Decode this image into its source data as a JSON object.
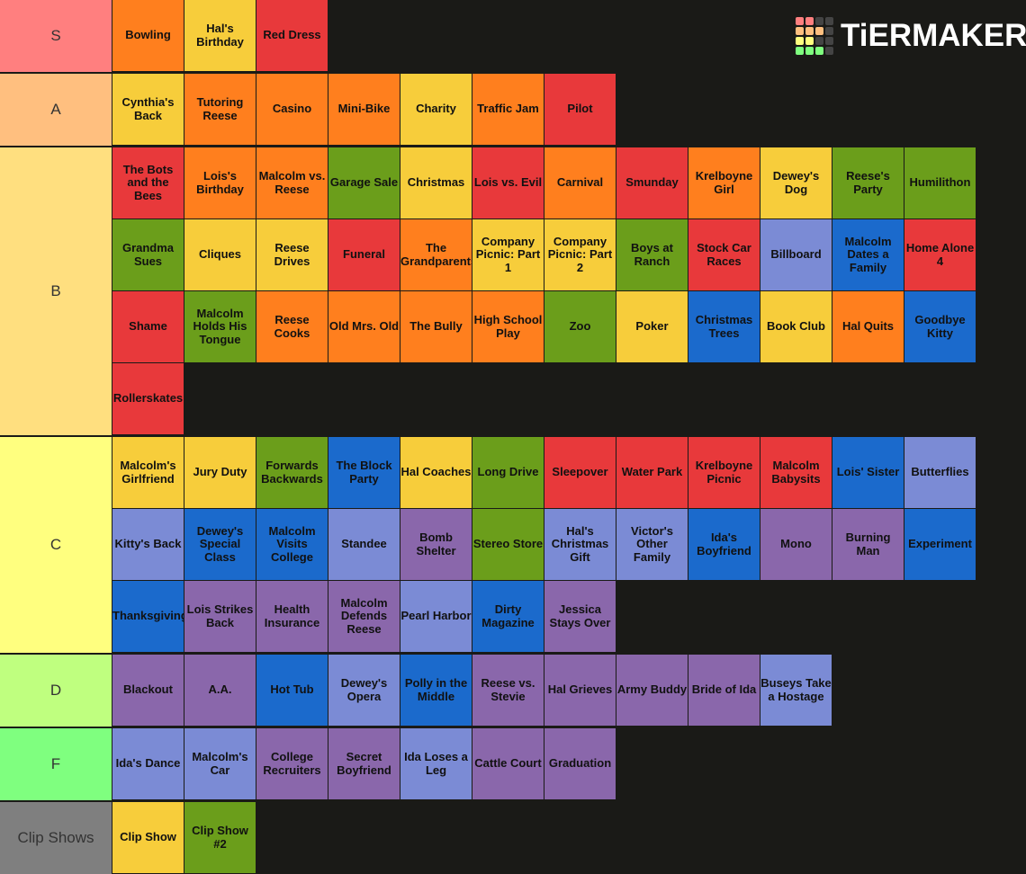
{
  "logo": "TiERMAKER",
  "tiers": [
    {
      "label": "S",
      "color": "#ff7f7f",
      "items": [
        {
          "label": "Bowling",
          "color": "#ff7f1e"
        },
        {
          "label": "Hal's Birthday",
          "color": "#f7cd3b"
        },
        {
          "label": "Red Dress",
          "color": "#e8393b"
        }
      ]
    },
    {
      "label": "A",
      "color": "#ffbf7f",
      "items": [
        {
          "label": "Cynthia's Back",
          "color": "#f7cd3b"
        },
        {
          "label": "Tutoring Reese",
          "color": "#ff7f1e"
        },
        {
          "label": "Casino",
          "color": "#ff7f1e"
        },
        {
          "label": "Mini-Bike",
          "color": "#ff7f1e"
        },
        {
          "label": "Charity",
          "color": "#f7cd3b"
        },
        {
          "label": "Traffic Jam",
          "color": "#ff7f1e"
        },
        {
          "label": "Pilot",
          "color": "#e8393b"
        }
      ]
    },
    {
      "label": "B",
      "color": "#ffdf7f",
      "items": [
        {
          "label": "The Bots and the Bees",
          "color": "#e8393b"
        },
        {
          "label": "Lois's Birthday",
          "color": "#ff7f1e"
        },
        {
          "label": "Malcolm vs. Reese",
          "color": "#ff7f1e"
        },
        {
          "label": "Garage Sale",
          "color": "#6b9e1b"
        },
        {
          "label": "Christmas",
          "color": "#f7cd3b"
        },
        {
          "label": "Lois vs. Evil",
          "color": "#e8393b"
        },
        {
          "label": "Carnival",
          "color": "#ff7f1e"
        },
        {
          "label": "Smunday",
          "color": "#e8393b"
        },
        {
          "label": "Krelboyne Girl",
          "color": "#ff7f1e"
        },
        {
          "label": "Dewey's Dog",
          "color": "#f7cd3b"
        },
        {
          "label": "Reese's Party",
          "color": "#6b9e1b"
        },
        {
          "label": "Humilithon",
          "color": "#6b9e1b"
        },
        {
          "label": "Grandma Sues",
          "color": "#6b9e1b"
        },
        {
          "label": "Cliques",
          "color": "#f7cd3b"
        },
        {
          "label": "Reese Drives",
          "color": "#f7cd3b"
        },
        {
          "label": "Funeral",
          "color": "#e8393b"
        },
        {
          "label": "The Grandparents",
          "color": "#ff7f1e"
        },
        {
          "label": "Company Picnic: Part 1",
          "color": "#f7cd3b"
        },
        {
          "label": "Company Picnic: Part 2",
          "color": "#f7cd3b"
        },
        {
          "label": "Boys at Ranch",
          "color": "#6b9e1b"
        },
        {
          "label": "Stock Car Races",
          "color": "#e8393b"
        },
        {
          "label": "Billboard",
          "color": "#7b8bd5"
        },
        {
          "label": "Malcolm Dates a Family",
          "color": "#1b6acc"
        },
        {
          "label": "Home Alone 4",
          "color": "#e8393b"
        },
        {
          "label": "Shame",
          "color": "#e8393b"
        },
        {
          "label": "Malcolm Holds His Tongue",
          "color": "#6b9e1b"
        },
        {
          "label": "Reese Cooks",
          "color": "#ff7f1e"
        },
        {
          "label": "Old Mrs. Old",
          "color": "#ff7f1e"
        },
        {
          "label": "The Bully",
          "color": "#ff7f1e"
        },
        {
          "label": "High School Play",
          "color": "#ff7f1e"
        },
        {
          "label": "Zoo",
          "color": "#6b9e1b"
        },
        {
          "label": "Poker",
          "color": "#f7cd3b"
        },
        {
          "label": "Christmas Trees",
          "color": "#1b6acc"
        },
        {
          "label": "Book Club",
          "color": "#f7cd3b"
        },
        {
          "label": "Hal Quits",
          "color": "#ff7f1e"
        },
        {
          "label": "Goodbye Kitty",
          "color": "#1b6acc"
        },
        {
          "label": "Rollerskates",
          "color": "#e8393b"
        }
      ]
    },
    {
      "label": "C",
      "color": "#ffff7f",
      "items": [
        {
          "label": "Malcolm's Girlfriend",
          "color": "#f7cd3b"
        },
        {
          "label": "Jury Duty",
          "color": "#f7cd3b"
        },
        {
          "label": "Forwards Backwards",
          "color": "#6b9e1b"
        },
        {
          "label": "The Block Party",
          "color": "#1b6acc"
        },
        {
          "label": "Hal Coaches",
          "color": "#f7cd3b"
        },
        {
          "label": "Long Drive",
          "color": "#6b9e1b"
        },
        {
          "label": "Sleepover",
          "color": "#e8393b"
        },
        {
          "label": "Water Park",
          "color": "#e8393b"
        },
        {
          "label": "Krelboyne Picnic",
          "color": "#e8393b"
        },
        {
          "label": "Malcolm Babysits",
          "color": "#e8393b"
        },
        {
          "label": "Lois' Sister",
          "color": "#1b6acc"
        },
        {
          "label": "Butterflies",
          "color": "#7b8bd5"
        },
        {
          "label": "Kitty's Back",
          "color": "#7b8bd5"
        },
        {
          "label": "Dewey's Special Class",
          "color": "#1b6acc"
        },
        {
          "label": "Malcolm Visits College",
          "color": "#1b6acc"
        },
        {
          "label": "Standee",
          "color": "#7b8bd5"
        },
        {
          "label": "Bomb Shelter",
          "color": "#8a67ab"
        },
        {
          "label": "Stereo Store",
          "color": "#6b9e1b"
        },
        {
          "label": "Hal's Christmas Gift",
          "color": "#7b8bd5"
        },
        {
          "label": "Victor's Other Family",
          "color": "#7b8bd5"
        },
        {
          "label": "Ida's Boyfriend",
          "color": "#1b6acc"
        },
        {
          "label": "Mono",
          "color": "#8a67ab"
        },
        {
          "label": "Burning Man",
          "color": "#8a67ab"
        },
        {
          "label": "Experiment",
          "color": "#1b6acc"
        },
        {
          "label": "Thanksgiving",
          "color": "#1b6acc"
        },
        {
          "label": "Lois Strikes Back",
          "color": "#8a67ab"
        },
        {
          "label": "Health Insurance",
          "color": "#8a67ab"
        },
        {
          "label": "Malcolm Defends Reese",
          "color": "#8a67ab"
        },
        {
          "label": "Pearl Harbor",
          "color": "#7b8bd5"
        },
        {
          "label": "Dirty Magazine",
          "color": "#1b6acc"
        },
        {
          "label": "Jessica Stays Over",
          "color": "#8a67ab"
        }
      ]
    },
    {
      "label": "D",
      "color": "#bfff7f",
      "items": [
        {
          "label": "Blackout",
          "color": "#8a67ab"
        },
        {
          "label": "A.A.",
          "color": "#8a67ab"
        },
        {
          "label": "Hot Tub",
          "color": "#1b6acc"
        },
        {
          "label": "Dewey's Opera",
          "color": "#7b8bd5"
        },
        {
          "label": "Polly in the Middle",
          "color": "#1b6acc"
        },
        {
          "label": "Reese vs. Stevie",
          "color": "#8a67ab"
        },
        {
          "label": "Hal Grieves",
          "color": "#8a67ab"
        },
        {
          "label": "Army Buddy",
          "color": "#8a67ab"
        },
        {
          "label": "Bride of Ida",
          "color": "#8a67ab"
        },
        {
          "label": "Buseys Take a Hostage",
          "color": "#7b8bd5"
        }
      ]
    },
    {
      "label": "F",
      "color": "#7fff7f",
      "items": [
        {
          "label": "Ida's Dance",
          "color": "#7b8bd5"
        },
        {
          "label": "Malcolm's Car",
          "color": "#7b8bd5"
        },
        {
          "label": "College Recruiters",
          "color": "#8a67ab"
        },
        {
          "label": "Secret Boyfriend",
          "color": "#8a67ab"
        },
        {
          "label": "Ida Loses a Leg",
          "color": "#7b8bd5"
        },
        {
          "label": "Cattle Court",
          "color": "#8a67ab"
        },
        {
          "label": "Graduation",
          "color": "#8a67ab"
        }
      ]
    },
    {
      "label": "Clip Shows",
      "color": "#7f7f7f",
      "items": [
        {
          "label": "Clip Show",
          "color": "#f7cd3b"
        },
        {
          "label": "Clip Show #2",
          "color": "#6b9e1b"
        }
      ]
    }
  ]
}
